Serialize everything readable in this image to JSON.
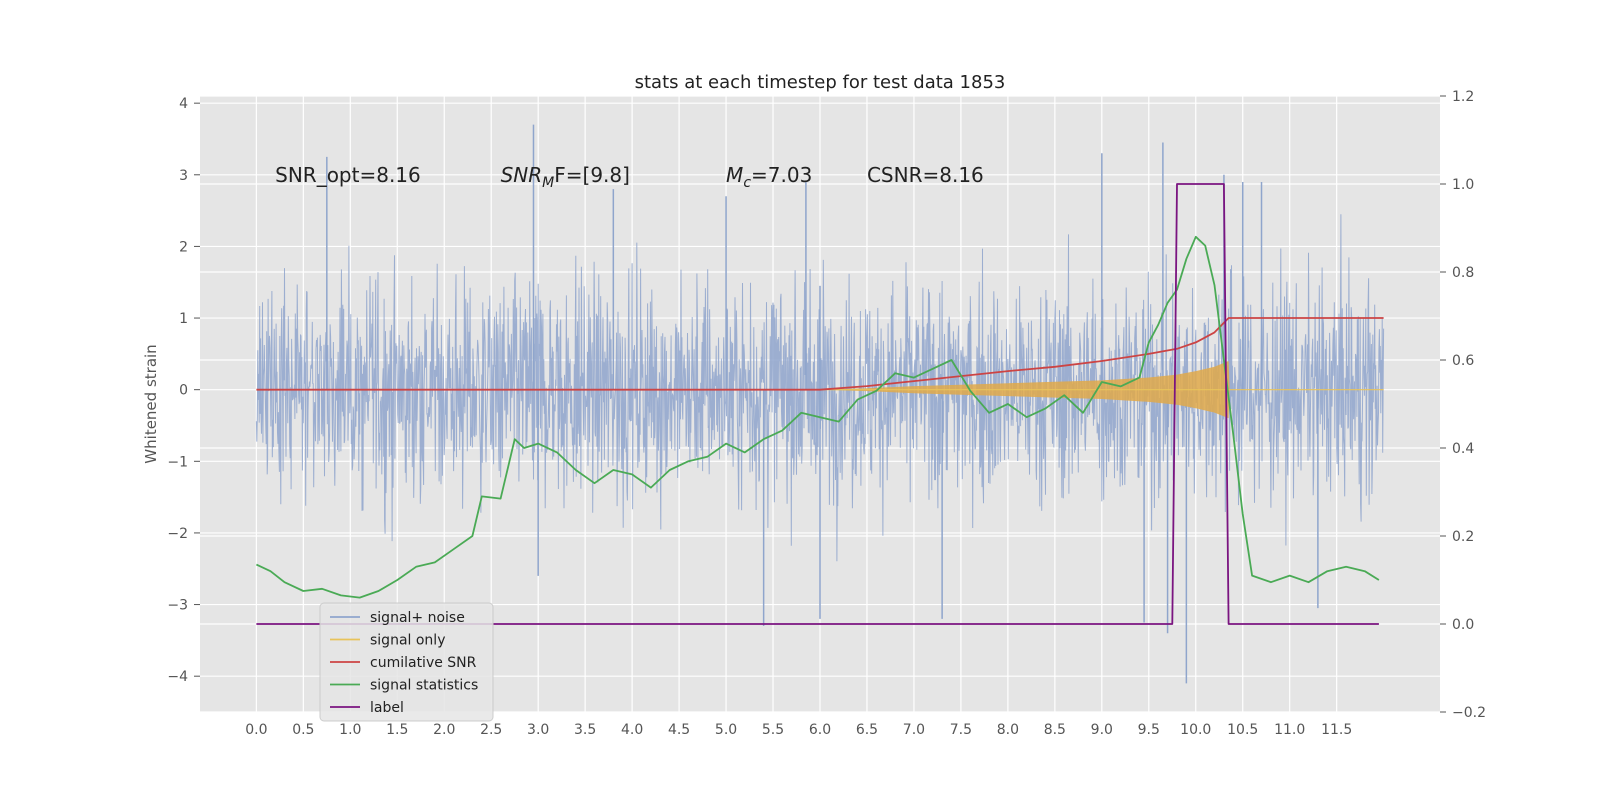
{
  "chart_data": {
    "type": "line",
    "title": "stats at each timestep for test data 1853",
    "xlabel": "",
    "ylabel": "Whitened strain",
    "y2label": "",
    "xlim": [
      -0.6,
      12.6
    ],
    "ylim": [
      -4.5,
      4.1
    ],
    "y2lim": [
      -0.2,
      1.2
    ],
    "grid": true,
    "legend_position": "lower-left",
    "x_ticks": [
      "0.0",
      "0.5",
      "1.0",
      "1.5",
      "2.0",
      "2.5",
      "3.0",
      "3.5",
      "4.0",
      "4.5",
      "5.0",
      "5.5",
      "6.0",
      "6.5",
      "7.0",
      "7.5",
      "8.0",
      "8.5",
      "9.0",
      "9.5",
      "10.0",
      "10.5",
      "11.0",
      "11.5"
    ],
    "y_ticks": [
      "4",
      "3",
      "2",
      "1",
      "0",
      "−1",
      "−2",
      "−3",
      "−4"
    ],
    "y2_ticks": [
      "1.2",
      "1.0",
      "0.8",
      "0.6",
      "0.4",
      "0.2",
      "0.0",
      "−0.2"
    ],
    "annotations": [
      {
        "label": "SNR_opt=8.16",
        "x": 0.2,
        "y": 2.9
      },
      {
        "label": "CSNR=8.16",
        "x": 6.5,
        "y": 2.9
      }
    ],
    "annotation_snrmf": {
      "pre": "SNR",
      "sub": "M",
      "post": "F=[9.8]",
      "x": 2.6,
      "y": 2.9
    },
    "annotation_mc": {
      "pre": "M",
      "sub": "c",
      "post": "=7.03",
      "x": 5.0,
      "y": 2.9
    },
    "series": [
      {
        "name": "signal+ noise",
        "color": "#8fa5cc",
        "axis": "left",
        "style": "noise",
        "x_range": [
          0.0,
          12.0
        ],
        "typical_peak": 1.65,
        "spikes": [
          [
            0.75,
            3.25
          ],
          [
            2.95,
            3.7
          ],
          [
            3.0,
            -2.6
          ],
          [
            3.8,
            2.8
          ],
          [
            5.4,
            -3.3
          ],
          [
            5.0,
            2.7
          ],
          [
            5.85,
            2.9
          ],
          [
            6.0,
            -3.2
          ],
          [
            6.0,
            1.45
          ],
          [
            7.3,
            -3.2
          ],
          [
            9.0,
            3.3
          ],
          [
            9.45,
            -3.25
          ],
          [
            9.65,
            3.45
          ],
          [
            9.7,
            -3.4
          ],
          [
            9.9,
            -4.1
          ],
          [
            10.3,
            3.0
          ],
          [
            10.5,
            2.9
          ],
          [
            10.7,
            2.9
          ],
          [
            11.3,
            -3.05
          ]
        ]
      },
      {
        "name": "signal only",
        "color": "#e8c35a",
        "fill_color": "#e0a94a",
        "axis": "left",
        "x": [
          6.0,
          6.5,
          7.0,
          7.5,
          8.0,
          8.5,
          9.0,
          9.5,
          9.8,
          10.0,
          10.2,
          10.35,
          10.36,
          12.0
        ],
        "amplitude": [
          0.0,
          0.02,
          0.05,
          0.07,
          0.09,
          0.11,
          0.13,
          0.17,
          0.21,
          0.26,
          0.32,
          0.4,
          0.0,
          0.0
        ]
      },
      {
        "name": "cumilative SNR",
        "color": "#cc4444",
        "axis": "left",
        "x": [
          0.0,
          6.0,
          6.5,
          7.0,
          7.5,
          8.0,
          8.5,
          9.0,
          9.5,
          9.8,
          10.0,
          10.2,
          10.35,
          10.36,
          12.0
        ],
        "y": [
          0.0,
          0.0,
          0.05,
          0.12,
          0.19,
          0.26,
          0.32,
          0.4,
          0.5,
          0.57,
          0.66,
          0.8,
          1.0,
          1.0,
          1.0
        ]
      },
      {
        "name": "signal statistics",
        "color": "#4aaa55",
        "axis": "right",
        "x": [
          0.0,
          0.15,
          0.3,
          0.5,
          0.7,
          0.9,
          1.1,
          1.3,
          1.5,
          1.7,
          1.9,
          2.1,
          2.3,
          2.4,
          2.6,
          2.75,
          2.85,
          3.0,
          3.2,
          3.4,
          3.6,
          3.8,
          4.0,
          4.2,
          4.4,
          4.6,
          4.8,
          5.0,
          5.2,
          5.4,
          5.6,
          5.8,
          6.0,
          6.2,
          6.4,
          6.6,
          6.8,
          7.0,
          7.2,
          7.4,
          7.6,
          7.8,
          8.0,
          8.2,
          8.4,
          8.6,
          8.8,
          9.0,
          9.2,
          9.4,
          9.5,
          9.6,
          9.7,
          9.8,
          9.9,
          10.0,
          10.1,
          10.2,
          10.3,
          10.4,
          10.5,
          10.6,
          10.8,
          11.0,
          11.2,
          11.4,
          11.6,
          11.8,
          11.95
        ],
        "y": [
          0.135,
          0.12,
          0.095,
          0.075,
          0.08,
          0.065,
          0.06,
          0.075,
          0.1,
          0.13,
          0.14,
          0.17,
          0.2,
          0.29,
          0.285,
          0.42,
          0.4,
          0.41,
          0.39,
          0.35,
          0.32,
          0.35,
          0.34,
          0.31,
          0.35,
          0.37,
          0.38,
          0.41,
          0.39,
          0.42,
          0.44,
          0.48,
          0.47,
          0.46,
          0.51,
          0.53,
          0.57,
          0.56,
          0.58,
          0.6,
          0.53,
          0.48,
          0.5,
          0.47,
          0.49,
          0.52,
          0.48,
          0.55,
          0.54,
          0.56,
          0.64,
          0.68,
          0.73,
          0.76,
          0.83,
          0.88,
          0.86,
          0.77,
          0.6,
          0.43,
          0.25,
          0.11,
          0.095,
          0.11,
          0.095,
          0.12,
          0.13,
          0.12,
          0.1
        ],
        "x_end": 11.95
      },
      {
        "name": "label",
        "color": "#7a1480",
        "axis": "right",
        "x": [
          0.0,
          9.75,
          9.8,
          10.3,
          10.35,
          11.95
        ],
        "y": [
          0.0,
          0.0,
          1.0,
          1.0,
          0.0,
          0.0
        ]
      }
    ]
  }
}
